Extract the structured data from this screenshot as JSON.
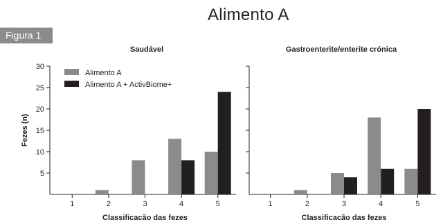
{
  "page": {
    "title": "Alimento A",
    "figure_label": "Figura 1"
  },
  "colors": {
    "series_a": "#8a8b8d",
    "series_b": "#231f20",
    "figure_label_bg": "#8a8b8d"
  },
  "legend": {
    "entries": [
      "Alimento A",
      "Alimento A + ActivBiome+"
    ],
    "placement": "top-left of first panel"
  },
  "shared_axis": {
    "ylabel": "Fezes (n)",
    "yticks": [
      5,
      10,
      15,
      20,
      25,
      30
    ]
  },
  "chart_data": [
    {
      "type": "bar",
      "title": "Saudável",
      "xlabel": "Classificacão das fezes",
      "ylabel": "Fezes (n)",
      "categories": [
        "1",
        "2",
        "3",
        "4",
        "5"
      ],
      "ylim": [
        0,
        30
      ],
      "series": [
        {
          "name": "Alimento A",
          "values": [
            0,
            1,
            8,
            13,
            10
          ]
        },
        {
          "name": "Alimento A + ActivBiome+",
          "values": [
            0,
            0,
            0,
            8,
            24
          ]
        }
      ]
    },
    {
      "type": "bar",
      "title": "Gastroenterite/enterite crónica",
      "xlabel": "Classificacão das fezes",
      "categories": [
        "1",
        "2",
        "3",
        "4",
        "5"
      ],
      "ylim": [
        0,
        30
      ],
      "series": [
        {
          "name": "Alimento A",
          "values": [
            0,
            1,
            5,
            18,
            6
          ]
        },
        {
          "name": "Alimento A + ActivBiome+",
          "values": [
            0,
            0,
            4,
            6,
            20
          ]
        }
      ]
    }
  ]
}
